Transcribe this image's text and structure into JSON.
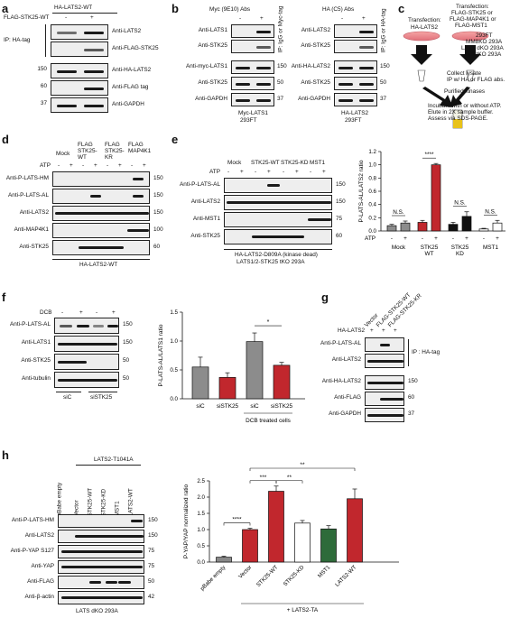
{
  "panels": {
    "a": {
      "letter": "a",
      "header": "HA-LATS2-WT",
      "treat_label": "FLAG-STK25-WT",
      "signs": [
        "-",
        "+"
      ],
      "ip_label": "IP: HA-tag",
      "ip_rows": [
        "Anti-LATS2",
        "Anti-FLAG-STK25"
      ],
      "input_rows": [
        "Anti-HA-LATS2",
        "Anti-FLAG tag",
        "Anti-GAPDH"
      ],
      "markers": [
        "150",
        "60",
        "37"
      ]
    },
    "b": {
      "letter": "b",
      "left_header": "Myc (9E10) Abs",
      "right_header": "HA (C5) Abs",
      "signs": [
        "-",
        "+"
      ],
      "left_rows": [
        "Anti-LATS1",
        "Anti-STK25",
        "Anti-myc-LATS1",
        "Anti-STK25",
        "Anti-GAPDH"
      ],
      "right_rows": [
        "Anti-LATS2",
        "Anti-STK25",
        "Anti-HA-LATS2",
        "Anti-STK25",
        "Anti-GAPDH"
      ],
      "left_ip": "IP: IgG or Myc-tag",
      "right_ip": "IP: IgG or HA-tag",
      "markers": [
        "150",
        "50",
        "37"
      ],
      "left_footer": [
        "Myc-LATS1",
        "293FT"
      ],
      "right_footer": [
        "HA-LATS2",
        "293FT"
      ]
    },
    "c": {
      "letter": "c",
      "dish1": [
        "Transfection:",
        "HA-LATS2"
      ],
      "dish2": [
        "Transfection:",
        "FLAG-STK25 or",
        "FLAG-MAP4K1 or",
        "FLAG-MST1"
      ],
      "cells": [
        "293FT",
        "MM8KO 293A",
        "LATS dKO 293A",
        "LS tKO 293A"
      ],
      "steps": [
        "Collect lysate",
        "IP w/ HA or FLAG abs."
      ],
      "purified": "Purified kinases",
      "final": [
        "Incubate with or without ATP.",
        "Elute in 2X sample buffer.",
        "Assess via SDS-PAGE."
      ]
    },
    "d": {
      "letter": "d",
      "lanes": [
        "Mock",
        "FLAG STK25-WT",
        "FLAG STK25-KR",
        "FLAG MAP4K1"
      ],
      "atp_label": "ATP",
      "atp_signs": [
        "-",
        "+",
        "-",
        "+",
        "-",
        "+",
        "-",
        "+"
      ],
      "rows": [
        "Anti-P-LATS-HM",
        "Anti-P-LATS-AL",
        "Anti-LATS2",
        "Anti-MAP4K1",
        "Anti-STK25"
      ],
      "markers": [
        "150",
        "150",
        "150",
        "100",
        "60"
      ],
      "footer": "HA-LATS2-WT"
    },
    "e": {
      "letter": "e",
      "lanes": [
        "Mock",
        "STK25-WT",
        "STK25-KD",
        "MST1"
      ],
      "atp_label": "ATP",
      "atp_signs": [
        "-",
        "+",
        "-",
        "+",
        "-",
        "+",
        "-",
        "+"
      ],
      "rows": [
        "Anti-P-LATS-AL",
        "Anti-LATS2",
        "Anti-MST1",
        "Anti-STK25"
      ],
      "markers": [
        "150",
        "150",
        "75",
        "60"
      ],
      "footer": [
        "HA-LATS2-D809A (kinase dead)",
        "LATS1/2-STK25 tKO 293A"
      ]
    },
    "f": {
      "letter": "f",
      "dcb_label": "DCB",
      "dcb_signs": [
        "-",
        "+",
        "-",
        "+"
      ],
      "rows": [
        "Anti-P-LATS-AL",
        "Anti-LATS1",
        "Anti-STK25",
        "Anti-tubulin"
      ],
      "markers": [
        "150",
        "150",
        "50",
        "50"
      ],
      "lane_groups": [
        "siC",
        "siSTK25"
      ]
    },
    "g": {
      "letter": "g",
      "lanes": [
        "Vector",
        "FLAG-STK25-WT",
        "FLAG-STK25-KR"
      ],
      "ha_label": "HA-LATS2",
      "ha_signs": [
        "+",
        "+",
        "+"
      ],
      "ip_rows": [
        "Anti-P-LATS-AL",
        "Anti-LATS2"
      ],
      "ip_label": "IP : HA-tag",
      "input_rows": [
        "Anti-HA-LATS2",
        "Anti-FLAG",
        "Anti-GAPDH"
      ],
      "markers": [
        "150",
        "60",
        "37"
      ]
    },
    "h": {
      "letter": "h",
      "header": "LATS2-T1041A",
      "lanes": [
        "pBabe empty",
        "Vector",
        "STK25-WT",
        "STK25-KD",
        "MST1",
        "LATS2-WT"
      ],
      "rows": [
        "Anti-P-LATS-HM",
        "Anti-LATS2",
        "Anti-P-YAP S127",
        "Anti-YAP",
        "Anti-FLAG",
        "Anti-β-actin"
      ],
      "markers": [
        "150",
        "150",
        "75",
        "75",
        "50",
        "42"
      ],
      "footer": "LATS dKO 293A"
    }
  },
  "chart_data": [
    {
      "type": "bar",
      "panel": "e",
      "ylabel": "P-LATS-AL/LATS2 ratio",
      "ylim": [
        0,
        1.2
      ],
      "yticks": [
        "0.0",
        "0.2",
        "0.4",
        "0.6",
        "0.8",
        "1.0",
        "1.2"
      ],
      "groups": [
        "Mock",
        "STK25 WT",
        "STK25 KD",
        "MST1"
      ],
      "atp_label": "ATP",
      "atp_signs": [
        "-",
        "+",
        "-",
        "+",
        "-",
        "+",
        "-",
        "+"
      ],
      "values": [
        0.08,
        0.12,
        0.13,
        1.0,
        0.1,
        0.22,
        0.03,
        0.12
      ],
      "errors": [
        0.02,
        0.03,
        0.03,
        0.02,
        0.03,
        0.07,
        0.01,
        0.04
      ],
      "colors": [
        "#8c8c8c",
        "#8c8c8c",
        "#c1272d",
        "#c1272d",
        "#111111",
        "#111111",
        "#ffffff",
        "#ffffff"
      ],
      "significance": [
        {
          "label": "N.S.",
          "from": 0,
          "to": 1
        },
        {
          "label": "****",
          "from": 2,
          "to": 3
        },
        {
          "label": "N.S.",
          "from": 4,
          "to": 5
        },
        {
          "label": "N.S.",
          "from": 6,
          "to": 7
        }
      ]
    },
    {
      "type": "bar",
      "panel": "f",
      "ylabel": "P-LATS-AL/LATS1 ratio",
      "ylim": [
        0,
        1.5
      ],
      "yticks": [
        "0.0",
        "0.5",
        "1.0",
        "1.5"
      ],
      "categories": [
        "siC",
        "siSTK25",
        "siC",
        "siSTK25"
      ],
      "values": [
        0.55,
        0.37,
        0.99,
        0.58
      ],
      "errors": [
        0.17,
        0.08,
        0.15,
        0.05
      ],
      "colors": [
        "#8c8c8c",
        "#c1272d",
        "#8c8c8c",
        "#c1272d"
      ],
      "group_label": "DCB treated cells",
      "significance": [
        {
          "label": "*",
          "from": 2,
          "to": 3
        }
      ]
    },
    {
      "type": "bar",
      "panel": "h",
      "ylabel": "P-YAP/YAP normalized ratio",
      "ylim": [
        0,
        2.5
      ],
      "yticks": [
        "0.0",
        "0.5",
        "1.0",
        "1.5",
        "2.0",
        "2.5"
      ],
      "categories": [
        "pBabe empty",
        "Vector",
        "STK25-WT",
        "STK25-KD",
        "MST1",
        "LATS2-WT"
      ],
      "values": [
        0.15,
        1.0,
        2.18,
        1.2,
        1.02,
        1.95
      ],
      "errors": [
        0.03,
        0.04,
        0.16,
        0.08,
        0.1,
        0.3
      ],
      "colors": [
        "#888888",
        "#c1272d",
        "#c1272d",
        "#ffffff",
        "#2e6b3a",
        "#c1272d"
      ],
      "group_label": "+ LATS2-TA",
      "significance": [
        {
          "label": "****",
          "from": 0,
          "to": 1
        },
        {
          "label": "***",
          "from": 1,
          "to": 2
        },
        {
          "label": "**",
          "from": 2,
          "to": 3
        },
        {
          "label": "**",
          "from": 1,
          "to": 5
        }
      ]
    }
  ]
}
